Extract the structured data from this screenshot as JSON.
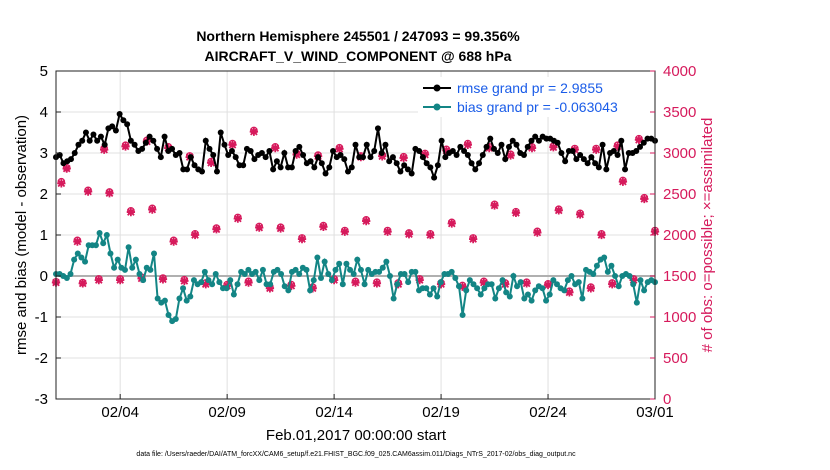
{
  "colors": {
    "rmse": "#000000",
    "bias": "#138585",
    "obs": "#d61a5c",
    "legend_text": "#1a5ce8",
    "zero_line": "#b0b0b0",
    "grid": "#e0e0e0"
  },
  "chart_data": {
    "type": "line",
    "title_line1": "Northern Hemisphere 245501 / 247093 = 99.356%",
    "title_line2": "AIRCRAFT_V_WIND_COMPONENT @ 688 hPa",
    "xlabel": "Feb.01,2017 00:00:00 start",
    "ylabel_left": "rmse and bias (model - observation)",
    "ylabel_right": "# of obs: o=possible;  ×=assimilated",
    "footnote": "data file: /Users/raeder/DAI/ATM_forcXX/CAM6_setup/f.e21.FHIST_BGC.f09_025.CAM6assim.011/Diags_NTrS_2017-02/obs_diag_output.nc",
    "xlim": [
      0,
      28
    ],
    "ylim_left": [
      -3,
      5
    ],
    "ylim_right": [
      0,
      4000
    ],
    "x_ticks": [
      3,
      8,
      13,
      18,
      23,
      28
    ],
    "x_tick_labels": [
      "02/04",
      "02/09",
      "02/14",
      "02/19",
      "02/24",
      "03/01"
    ],
    "y_ticks_left": [
      -3,
      -2,
      -1,
      0,
      1,
      2,
      3,
      4,
      5
    ],
    "y_ticks_right": [
      0,
      500,
      1000,
      1500,
      2000,
      2500,
      3000,
      3500,
      4000
    ],
    "legend": [
      "rmse grand pr = 2.9855",
      "bias grand pr = -0.063043"
    ],
    "series": [
      {
        "name": "rmse",
        "axis": "left",
        "values": [
          2.9,
          2.95,
          2.75,
          2.8,
          2.85,
          3.0,
          3.2,
          3.3,
          3.5,
          3.3,
          3.45,
          3.3,
          3.4,
          3.2,
          3.6,
          3.65,
          3.55,
          3.95,
          3.8,
          3.7,
          3.3,
          3.2,
          3.05,
          3.1,
          3.25,
          3.4,
          3.3,
          3.1,
          2.9,
          3.4,
          3.05,
          3.1,
          2.95,
          3.0,
          2.6,
          2.6,
          2.9,
          2.7,
          2.6,
          2.55,
          3.3,
          3.1,
          2.95,
          2.55,
          3.5,
          3.2,
          2.95,
          3.05,
          2.9,
          2.7,
          2.7,
          3.1,
          3.05,
          2.85,
          2.95,
          3.0,
          2.9,
          3.05,
          2.6,
          2.8,
          2.65,
          3.0,
          2.65,
          2.65,
          3.05,
          3.15,
          2.95,
          2.75,
          2.8,
          2.65,
          2.9,
          2.75,
          2.5,
          2.65,
          3.05,
          2.9,
          2.95,
          2.85,
          2.55,
          2.65,
          3.2,
          2.9,
          2.9,
          3.2,
          2.9,
          3.05,
          3.6,
          3.0,
          3.2,
          2.8,
          2.9,
          2.75,
          2.55,
          2.7,
          2.6,
          2.5,
          3.1,
          3.05,
          2.9,
          2.75,
          2.65,
          2.4,
          2.7,
          3.3,
          2.9,
          3.0,
          3.05,
          2.95,
          3.15,
          3.05,
          2.95,
          2.75,
          2.6,
          2.75,
          2.95,
          3.15,
          3.35,
          3.1,
          3.0,
          3.2,
          2.85,
          3.15,
          3.3,
          3.2,
          3.0,
          2.95,
          3.15,
          3.3,
          3.4,
          3.3,
          3.4,
          3.35,
          3.35,
          3.3,
          3.25,
          3.0,
          2.8,
          3.05,
          3.05,
          2.85,
          2.95,
          2.85,
          2.75,
          2.9,
          2.75,
          2.65,
          3.2,
          2.6,
          3.0,
          3.05,
          2.95,
          3.3,
          2.6,
          3.0,
          3.0,
          3.05,
          3.15,
          3.25,
          3.35,
          3.35,
          3.3
        ]
      },
      {
        "name": "bias",
        "axis": "left",
        "values": [
          0.05,
          0.05,
          0.0,
          -0.05,
          0.05,
          0.4,
          0.55,
          0.45,
          0.35,
          0.75,
          0.75,
          0.75,
          1.05,
          0.8,
          1.0,
          0.55,
          0.2,
          0.4,
          0.2,
          0.15,
          0.7,
          0.2,
          0.4,
          0.05,
          -0.1,
          0.2,
          0.15,
          0.55,
          -0.55,
          -0.65,
          -0.6,
          -0.95,
          -1.1,
          -1.05,
          -0.55,
          -0.3,
          -0.6,
          -0.5,
          -0.1,
          -0.2,
          -0.15,
          0.1,
          -0.1,
          -0.2,
          0.05,
          -0.15,
          -0.3,
          -0.3,
          -0.1,
          -0.45,
          -0.2,
          0.1,
          0.05,
          0.15,
          0.05,
          0.1,
          -0.1,
          0.15,
          -0.2,
          -0.2,
          0.1,
          0.15,
          0.05,
          -0.25,
          -0.35,
          0.1,
          0.15,
          0.05,
          0.2,
          0.15,
          -0.35,
          -0.1,
          0.45,
          -0.05,
          0.35,
          0.05,
          -0.1,
          0.15,
          0.3,
          -0.2,
          0.3,
          0.15,
          0.05,
          0.4,
          0.15,
          -0.2,
          0.15,
          0.05,
          0.1,
          0.1,
          0.2,
          0.35,
          0.0,
          -0.55,
          -0.2,
          0.05,
          0.05,
          -0.15,
          0.1,
          0.1,
          -0.35,
          -0.3,
          -0.3,
          -0.45,
          -0.3,
          -0.5,
          -0.15,
          0.05,
          0.05,
          0.1,
          -0.05,
          -0.25,
          -0.95,
          -0.35,
          -0.1,
          -0.2,
          -0.3,
          -0.45,
          -0.3,
          -0.2,
          -0.2,
          -0.55,
          -0.3,
          -0.1,
          -0.4,
          -0.5,
          0.0,
          -0.25,
          -0.15,
          -0.55,
          -0.45,
          -0.6,
          -0.35,
          -0.25,
          -0.3,
          -0.6,
          -0.45,
          -0.1,
          -0.2,
          -0.3,
          -0.35,
          -0.1,
          0.0,
          -0.2,
          -0.15,
          -0.55,
          0.15,
          0.1,
          0.05,
          0.25,
          0.4,
          0.45,
          0.1,
          0.25,
          0.0,
          -0.25,
          0.0,
          0.05,
          0.0,
          -0.2,
          -0.65,
          -0.1,
          -0.35,
          -0.15,
          -0.1,
          -0.15
        ]
      },
      {
        "name": "obs_assimilated",
        "axis": "right",
        "x": [
          0,
          0.25,
          0.5,
          1,
          1.25,
          1.5,
          2,
          2.25,
          2.5,
          3,
          3.25,
          3.5,
          4,
          4.25,
          4.5,
          5,
          5.25,
          5.5,
          6,
          6.25,
          6.5,
          7,
          7.25,
          7.5,
          8,
          8.25,
          8.5,
          9,
          9.25,
          9.5,
          10,
          10.25,
          10.5,
          11,
          11.25,
          11.5,
          12,
          12.25,
          12.5,
          13,
          13.25,
          13.5,
          14,
          14.25,
          14.5,
          15,
          15.25,
          15.5,
          16,
          16.25,
          16.5,
          17,
          17.25,
          17.5,
          18,
          18.25,
          18.5,
          19,
          19.25,
          19.5,
          20,
          20.25,
          20.5,
          21,
          21.25,
          21.5,
          22,
          22.25,
          22.5,
          23,
          23.25,
          23.5,
          24,
          24.25,
          24.5,
          25,
          25.25,
          25.5,
          26,
          26.25,
          26.5,
          27,
          27.25,
          27.5,
          28
        ],
        "values": [
          1420,
          2630,
          2810,
          1920,
          1410,
          2530,
          1450,
          3040,
          2510,
          1450,
          3080,
          2280,
          1470,
          3140,
          2310,
          1460,
          3060,
          1920,
          1440,
          2950,
          2000,
          1400,
          2880,
          2070,
          1380,
          3100,
          2200,
          1420,
          3260,
          2090,
          1350,
          3060,
          2080,
          1380,
          2980,
          1950,
          1350,
          2960,
          2100,
          1450,
          3050,
          2040,
          1420,
          2950,
          2170,
          1410,
          2960,
          2040,
          1400,
          2940,
          2010,
          1450,
          2980,
          2000,
          1400,
          3030,
          2140,
          1370,
          3100,
          1950,
          1420,
          3060,
          2360,
          1400,
          2970,
          2270,
          1410,
          3060,
          2030,
          1390,
          3070,
          2300,
          1300,
          3040,
          2250,
          1350,
          3040,
          2000,
          1400,
          3080,
          2650,
          1450,
          3160,
          2440,
          2040
        ]
      },
      {
        "name": "obs_possible",
        "axis": "right",
        "x": [
          0,
          0.25,
          0.5,
          1,
          1.25,
          1.5,
          2,
          2.25,
          2.5,
          3,
          3.25,
          3.5,
          4,
          4.25,
          4.5,
          5,
          5.25,
          5.5,
          6,
          6.25,
          6.5,
          7,
          7.25,
          7.5,
          8,
          8.25,
          8.5,
          9,
          9.25,
          9.5,
          10,
          10.25,
          10.5,
          11,
          11.25,
          11.5,
          12,
          12.25,
          12.5,
          13,
          13.25,
          13.5,
          14,
          14.25,
          14.5,
          15,
          15.25,
          15.5,
          16,
          16.25,
          16.5,
          17,
          17.25,
          17.5,
          18,
          18.25,
          18.5,
          19,
          19.25,
          19.5,
          20,
          20.25,
          20.5,
          21,
          21.25,
          21.5,
          22,
          22.25,
          22.5,
          23,
          23.25,
          23.5,
          24,
          24.25,
          24.5,
          25,
          25.25,
          25.5,
          26,
          26.25,
          26.5,
          27,
          27.25,
          27.5,
          28
        ],
        "values": [
          1430,
          2650,
          2820,
          1935,
          1420,
          2545,
          1465,
          3055,
          2525,
          1465,
          3095,
          2295,
          1485,
          3155,
          2325,
          1475,
          3075,
          1935,
          1455,
          2965,
          2015,
          1415,
          2895,
          2085,
          1395,
          3115,
          2215,
          1435,
          3275,
          2105,
          1365,
          3075,
          2095,
          1395,
          2995,
          1965,
          1365,
          2975,
          2115,
          1465,
          3065,
          2055,
          1435,
          2965,
          2185,
          1425,
          2975,
          2055,
          1415,
          2955,
          2025,
          1465,
          2995,
          2015,
          1415,
          3045,
          2155,
          1385,
          3115,
          1965,
          1435,
          3075,
          2375,
          1415,
          2985,
          2285,
          1425,
          3075,
          2045,
          1405,
          3085,
          2315,
          1315,
          3055,
          2265,
          1365,
          3055,
          2015,
          1415,
          3095,
          2665,
          1465,
          3175,
          2455,
          2055
        ]
      }
    ]
  }
}
